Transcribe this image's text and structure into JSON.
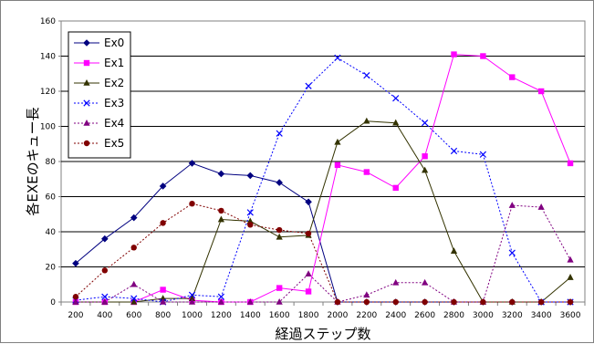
{
  "chart_data": {
    "type": "line",
    "title": "",
    "xlabel": "経過ステップ数",
    "ylabel": "各EXEのキュー長",
    "ylim": [
      0,
      160
    ],
    "yticks": [
      0,
      20,
      40,
      60,
      80,
      100,
      120,
      140,
      160
    ],
    "grid": true,
    "legend_position": "top-left",
    "x": [
      200,
      400,
      600,
      800,
      1000,
      1200,
      1400,
      1600,
      1800,
      2000,
      2200,
      2400,
      2600,
      2800,
      3000,
      3200,
      3400,
      3600
    ],
    "series": [
      {
        "name": "Ex0",
        "color": "#000080",
        "dash": "solid",
        "marker": "diamond",
        "values": [
          22,
          36,
          48,
          66,
          79,
          73,
          72,
          68,
          57,
          0,
          0,
          0,
          0,
          0,
          0,
          0,
          0,
          0
        ]
      },
      {
        "name": "Ex1",
        "color": "#ff00ff",
        "dash": "solid",
        "marker": "square",
        "values": [
          0,
          0,
          0,
          7,
          1,
          0,
          0,
          8,
          6,
          78,
          74,
          65,
          83,
          141,
          140,
          128,
          120,
          79
        ]
      },
      {
        "name": "Ex2",
        "color": "#333300",
        "dash": "solid",
        "marker": "triangle",
        "values": [
          0,
          0,
          0,
          2,
          2,
          47,
          46,
          37,
          38,
          91,
          103,
          102,
          75,
          29,
          0,
          0,
          0,
          14
        ]
      },
      {
        "name": "Ex3",
        "color": "#0000ff",
        "dash": "dotted",
        "marker": "x",
        "values": [
          1,
          3,
          2,
          0,
          4,
          3,
          51,
          96,
          123,
          139,
          129,
          116,
          102,
          86,
          84,
          28,
          0,
          0
        ]
      },
      {
        "name": "Ex4",
        "color": "#800080",
        "dash": "dotted",
        "marker": "triangle",
        "values": [
          0,
          0,
          10,
          0,
          0,
          0,
          0,
          0,
          16,
          0,
          4,
          11,
          11,
          0,
          0,
          55,
          54,
          24
        ]
      },
      {
        "name": "Ex5",
        "color": "#800000",
        "dash": "dotted",
        "marker": "circle",
        "values": [
          3,
          18,
          31,
          45,
          56,
          52,
          44,
          41,
          39,
          0,
          0,
          0,
          0,
          0,
          0,
          0,
          0,
          0
        ]
      }
    ]
  }
}
